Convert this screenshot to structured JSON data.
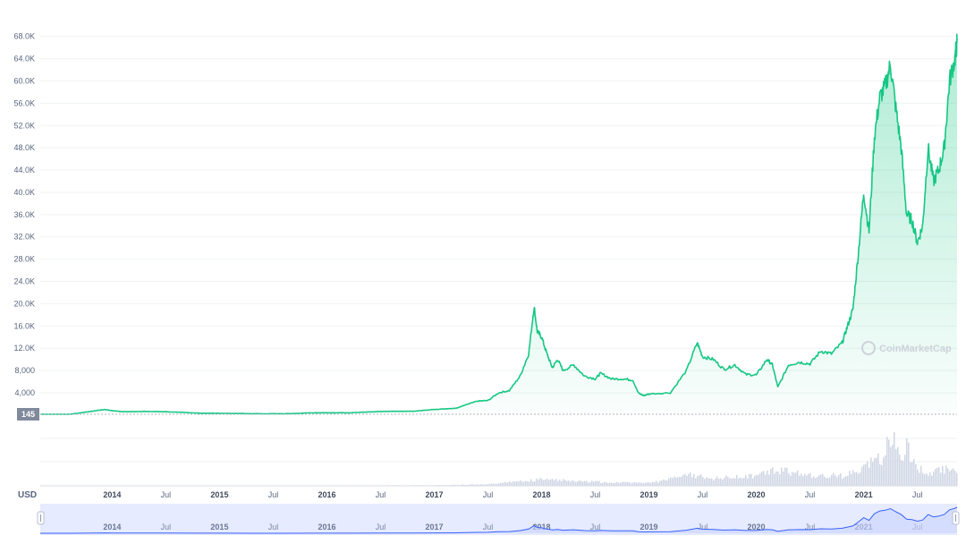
{
  "currency_label": "USD",
  "watermark": "CoinMarketCap",
  "start_price_badge": "145",
  "colors": {
    "line": "#16c784",
    "area": "#16c784",
    "volume": "#cfd6e4",
    "grid": "#eff2f5",
    "navigator_bg": "#e6ebff",
    "navigator_line": "#3861fb",
    "badge": "#808a9d"
  },
  "chart_data": {
    "type": "area",
    "y_ticks": [
      "4,000",
      "8,000",
      "12.0K",
      "16.0K",
      "20.0K",
      "24.0K",
      "28.0K",
      "32.0K",
      "36.0K",
      "40.0K",
      "44.0K",
      "48.0K",
      "52.0K",
      "56.0K",
      "60.0K",
      "64.0K",
      "68.0K"
    ],
    "y_tick_values": [
      4000,
      8000,
      12000,
      16000,
      20000,
      24000,
      28000,
      32000,
      36000,
      40000,
      44000,
      48000,
      52000,
      56000,
      60000,
      64000,
      68000
    ],
    "ylim": [
      145,
      71000
    ],
    "x_ticks": [
      {
        "label": "2014",
        "t": 2014.0,
        "year": true
      },
      {
        "label": "Jul",
        "t": 2014.5,
        "year": false
      },
      {
        "label": "2015",
        "t": 2015.0,
        "year": true
      },
      {
        "label": "Jul",
        "t": 2015.5,
        "year": false
      },
      {
        "label": "2016",
        "t": 2016.0,
        "year": true
      },
      {
        "label": "Jul",
        "t": 2016.5,
        "year": false
      },
      {
        "label": "2017",
        "t": 2017.0,
        "year": true
      },
      {
        "label": "Jul",
        "t": 2017.5,
        "year": false
      },
      {
        "label": "2018",
        "t": 2018.0,
        "year": true
      },
      {
        "label": "Jul",
        "t": 2018.5,
        "year": false
      },
      {
        "label": "2019",
        "t": 2019.0,
        "year": true
      },
      {
        "label": "Jul",
        "t": 2019.5,
        "year": false
      },
      {
        "label": "2020",
        "t": 2020.0,
        "year": true
      },
      {
        "label": "Jul",
        "t": 2020.5,
        "year": false
      },
      {
        "label": "2021",
        "t": 2021.0,
        "year": true
      },
      {
        "label": "Jul",
        "t": 2021.5,
        "year": false
      }
    ],
    "xlim": [
      2013.33,
      2021.87
    ],
    "price_series": {
      "x": [
        2013.33,
        2013.6,
        2013.85,
        2013.93,
        2014.0,
        2014.1,
        2014.3,
        2014.5,
        2014.8,
        2015.0,
        2015.3,
        2015.6,
        2015.9,
        2016.2,
        2016.5,
        2016.8,
        2017.0,
        2017.2,
        2017.4,
        2017.5,
        2017.6,
        2017.7,
        2017.8,
        2017.88,
        2017.93,
        2017.96,
        2018.0,
        2018.05,
        2018.1,
        2018.15,
        2018.2,
        2018.3,
        2018.4,
        2018.5,
        2018.55,
        2018.65,
        2018.75,
        2018.85,
        2018.9,
        2018.95,
        2019.0,
        2019.2,
        2019.35,
        2019.45,
        2019.5,
        2019.6,
        2019.7,
        2019.8,
        2019.9,
        2020.0,
        2020.1,
        2020.15,
        2020.2,
        2020.3,
        2020.4,
        2020.5,
        2020.6,
        2020.7,
        2020.8,
        2020.85,
        2020.9,
        2020.95,
        2021.0,
        2021.05,
        2021.1,
        2021.15,
        2021.2,
        2021.25,
        2021.3,
        2021.35,
        2021.4,
        2021.45,
        2021.5,
        2021.55,
        2021.6,
        2021.65,
        2021.7,
        2021.75,
        2021.8,
        2021.85,
        2021.87
      ],
      "values": [
        145,
        120,
        800,
        1000,
        800,
        600,
        650,
        600,
        350,
        310,
        250,
        240,
        420,
        420,
        650,
        700,
        1000,
        1200,
        2500,
        2600,
        4000,
        4400,
        7000,
        11000,
        19500,
        15000,
        14000,
        11000,
        8500,
        10000,
        8000,
        9000,
        7000,
        6500,
        7500,
        6500,
        6500,
        6300,
        4000,
        3500,
        3800,
        4000,
        8000,
        13000,
        10500,
        10000,
        8200,
        9000,
        7300,
        7200,
        10000,
        9000,
        5000,
        9000,
        9500,
        9200,
        11500,
        11000,
        13000,
        16000,
        19000,
        29000,
        40000,
        33000,
        50000,
        57000,
        59000,
        63000,
        55000,
        48000,
        36000,
        35000,
        31000,
        34000,
        48000,
        42000,
        44000,
        48000,
        60000,
        64000,
        67000
      ]
    },
    "volume_series": {
      "x": [
        2013.33,
        2017.0,
        2017.5,
        2018.0,
        2018.5,
        2019.0,
        2019.4,
        2019.6,
        2020.0,
        2020.2,
        2020.5,
        2020.8,
        2021.0,
        2021.1,
        2021.15,
        2021.25,
        2021.35,
        2021.4,
        2021.5,
        2021.6,
        2021.7,
        2021.87
      ],
      "values": [
        0,
        0.01,
        0.03,
        0.12,
        0.07,
        0.05,
        0.2,
        0.14,
        0.18,
        0.3,
        0.2,
        0.18,
        0.35,
        0.5,
        0.45,
        1.0,
        0.55,
        0.7,
        0.35,
        0.25,
        0.3,
        0.28
      ]
    }
  }
}
